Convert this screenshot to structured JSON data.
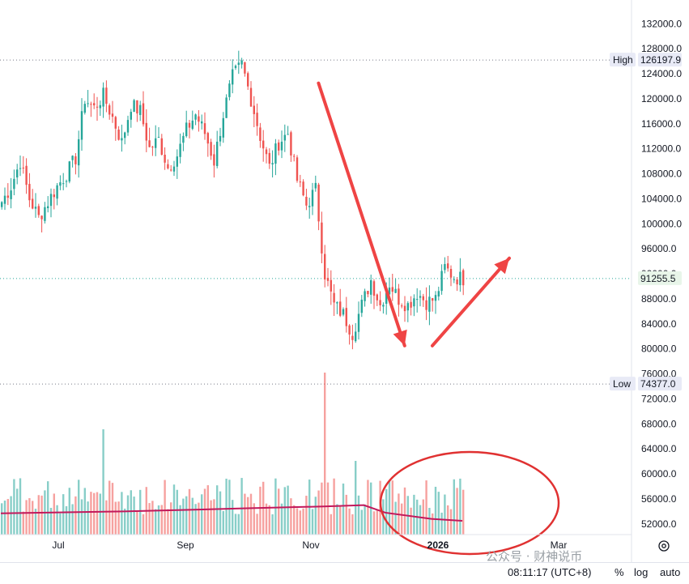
{
  "chart_data": {
    "type": "candlestick",
    "price_axis": {
      "ticks": [
        "132000.0",
        "128000.0",
        "124000.0",
        "120000.0",
        "116000.0",
        "112000.0",
        "108000.0",
        "104000.0",
        "100000.0",
        "96000.0",
        "92000.0",
        "88000.0",
        "84000.0",
        "80000.0",
        "76000.0",
        "72000.0",
        "68000.0",
        "64000.0",
        "60000.0",
        "56000.0",
        "52000.0"
      ],
      "range": [
        49000,
        134500
      ]
    },
    "time_axis": {
      "labels": [
        "Jul",
        "Sep",
        "Nov",
        "2026",
        "Mar"
      ]
    },
    "markers": {
      "high": {
        "label": "High",
        "value": "126197.9"
      },
      "low": {
        "label": "Low",
        "value": "74377.0"
      },
      "last": {
        "value": "91255.5"
      }
    },
    "price_path_approx": [
      [
        0,
        103500
      ],
      [
        3,
        106000
      ],
      [
        6,
        110000
      ],
      [
        9,
        104000
      ],
      [
        12,
        101000
      ],
      [
        15,
        103500
      ],
      [
        18,
        106000
      ],
      [
        21,
        108000
      ],
      [
        24,
        110500
      ],
      [
        27,
        120000
      ],
      [
        30,
        118500
      ],
      [
        33,
        120500
      ],
      [
        36,
        117000
      ],
      [
        39,
        113000
      ],
      [
        42,
        119000
      ],
      [
        45,
        118000
      ],
      [
        48,
        112000
      ],
      [
        51,
        113500
      ],
      [
        54,
        109000
      ],
      [
        57,
        111000
      ],
      [
        60,
        115000
      ],
      [
        63,
        117500
      ],
      [
        66,
        114500
      ],
      [
        69,
        110000
      ],
      [
        72,
        117500
      ],
      [
        75,
        123500
      ],
      [
        78,
        125500
      ],
      [
        81,
        120000
      ],
      [
        84,
        114000
      ],
      [
        87,
        109000
      ],
      [
        90,
        113000
      ],
      [
        93,
        114500
      ],
      [
        96,
        107000
      ],
      [
        99,
        103000
      ],
      [
        102,
        105500
      ],
      [
        105,
        92000
      ],
      [
        108,
        87000
      ],
      [
        111,
        85500
      ],
      [
        114,
        82500
      ],
      [
        117,
        87000
      ],
      [
        120,
        91000
      ],
      [
        123,
        87000
      ],
      [
        126,
        90500
      ],
      [
        129,
        88000
      ],
      [
        132,
        87000
      ],
      [
        135,
        89000
      ],
      [
        138,
        87500
      ],
      [
        141,
        88000
      ],
      [
        144,
        93000
      ],
      [
        147,
        91500
      ],
      [
        150,
        91255
      ]
    ],
    "volume_spikes": [
      [
        33,
        50
      ],
      [
        105,
        100
      ],
      [
        115,
        35
      ]
    ],
    "volume_ma_approx": [
      [
        0,
        53700
      ],
      [
        40,
        54000
      ],
      [
        80,
        54500
      ],
      [
        105,
        54800
      ],
      [
        118,
        55000
      ],
      [
        125,
        53800
      ],
      [
        140,
        52800
      ],
      [
        150,
        52500
      ]
    ],
    "annotations": {
      "down_arrow_from": [
        103,
        122500
      ],
      "down_arrow_to": [
        131,
        80500
      ],
      "up_arrow_from": [
        140,
        80500
      ],
      "up_arrow_to": [
        165,
        94500
      ],
      "ellipse_note": "red ellipse around recent volume"
    },
    "colors": {
      "up": "#26a69a",
      "down": "#ef5350",
      "volume_ma": "#c2185b",
      "annotation": "#ef4444",
      "last_price_bg": "#e8f5e9"
    }
  },
  "bottom_bar": {
    "time": "08:11:17 (UTC+8)",
    "percent": "%",
    "log": "log",
    "auto": "auto"
  },
  "settings_icon": "gear-icon",
  "watermark": "公众号 · 财神说币"
}
